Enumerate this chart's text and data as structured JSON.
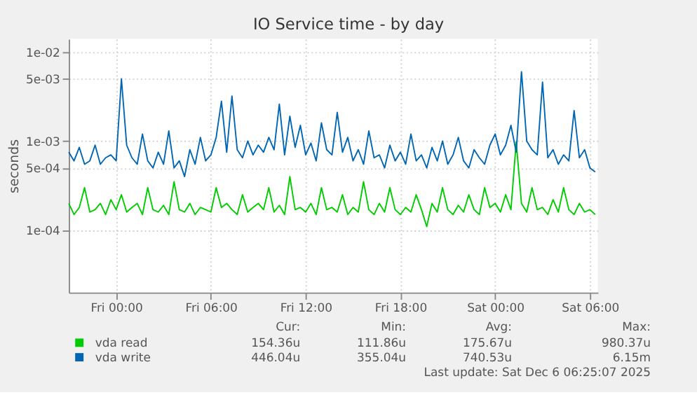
{
  "chart_data": {
    "type": "line",
    "title": "IO Service time - by day",
    "ylabel": "seconds",
    "x": [
      "2025-12-04T21:00",
      "2025-12-04T21:20",
      "2025-12-04T21:40",
      "2025-12-04T22:00",
      "2025-12-04T22:20",
      "2025-12-04T22:40",
      "2025-12-04T23:00",
      "2025-12-04T23:20",
      "2025-12-04T23:40",
      "2025-12-05T00:00",
      "2025-12-05T00:20",
      "2025-12-05T00:40",
      "2025-12-05T01:00",
      "2025-12-05T01:20",
      "2025-12-05T01:40",
      "2025-12-05T02:00",
      "2025-12-05T02:20",
      "2025-12-05T02:40",
      "2025-12-05T03:00",
      "2025-12-05T03:20",
      "2025-12-05T03:40",
      "2025-12-05T04:00",
      "2025-12-05T04:20",
      "2025-12-05T04:40",
      "2025-12-05T05:00",
      "2025-12-05T05:20",
      "2025-12-05T05:40",
      "2025-12-05T06:00",
      "2025-12-05T06:20",
      "2025-12-05T06:40",
      "2025-12-05T07:00",
      "2025-12-05T07:20",
      "2025-12-05T07:40",
      "2025-12-05T08:00",
      "2025-12-05T08:20",
      "2025-12-05T08:40",
      "2025-12-05T09:00",
      "2025-12-05T09:20",
      "2025-12-05T09:40",
      "2025-12-05T10:00",
      "2025-12-05T10:20",
      "2025-12-05T10:40",
      "2025-12-05T11:00",
      "2025-12-05T11:20",
      "2025-12-05T11:40",
      "2025-12-05T12:00",
      "2025-12-05T12:20",
      "2025-12-05T12:40",
      "2025-12-05T13:00",
      "2025-12-05T13:20",
      "2025-12-05T13:40",
      "2025-12-05T14:00",
      "2025-12-05T14:20",
      "2025-12-05T14:40",
      "2025-12-05T15:00",
      "2025-12-05T15:20",
      "2025-12-05T15:40",
      "2025-12-05T16:00",
      "2025-12-05T16:20",
      "2025-12-05T16:40",
      "2025-12-05T17:00",
      "2025-12-05T17:20",
      "2025-12-05T17:40",
      "2025-12-05T18:00",
      "2025-12-05T18:20",
      "2025-12-05T18:40",
      "2025-12-05T19:00",
      "2025-12-05T19:20",
      "2025-12-05T19:40",
      "2025-12-05T20:00",
      "2025-12-05T20:20",
      "2025-12-05T20:40",
      "2025-12-05T21:00",
      "2025-12-05T21:20",
      "2025-12-05T21:40",
      "2025-12-05T22:00",
      "2025-12-05T22:20",
      "2025-12-05T22:40",
      "2025-12-05T23:00",
      "2025-12-05T23:20",
      "2025-12-05T23:40",
      "2025-12-06T00:00",
      "2025-12-06T00:20",
      "2025-12-06T00:40",
      "2025-12-06T01:00",
      "2025-12-06T01:20",
      "2025-12-06T01:40",
      "2025-12-06T02:00",
      "2025-12-06T02:20",
      "2025-12-06T02:40",
      "2025-12-06T03:00",
      "2025-12-06T03:20",
      "2025-12-06T03:40",
      "2025-12-06T04:00",
      "2025-12-06T04:20",
      "2025-12-06T04:40",
      "2025-12-06T05:00",
      "2025-12-06T05:20",
      "2025-12-06T05:40",
      "2025-12-06T06:00",
      "2025-12-06T06:20"
    ],
    "series": [
      {
        "name": "vda read",
        "color": "#00cc00",
        "values": [
          0.0002,
          0.00015,
          0.00018,
          0.0003,
          0.00016,
          0.00017,
          0.0002,
          0.00015,
          0.00022,
          0.00017,
          0.00025,
          0.00016,
          0.00018,
          0.0002,
          0.00015,
          0.0003,
          0.00017,
          0.00016,
          0.00019,
          0.00015,
          0.00035,
          0.00017,
          0.00016,
          0.0002,
          0.00015,
          0.00018,
          0.00017,
          0.00016,
          0.0003,
          0.00018,
          0.0002,
          0.00017,
          0.00015,
          0.00025,
          0.00016,
          0.00018,
          0.0002,
          0.00017,
          0.0003,
          0.00016,
          0.00019,
          0.00015,
          0.0004,
          0.00017,
          0.00018,
          0.00016,
          0.0002,
          0.00015,
          0.0003,
          0.00017,
          0.00018,
          0.00016,
          0.00025,
          0.00015,
          0.00018,
          0.00016,
          0.00035,
          0.00017,
          0.00015,
          0.0002,
          0.00016,
          0.0003,
          0.00017,
          0.00015,
          0.00018,
          0.00016,
          0.00025,
          0.00017,
          0.00011,
          0.0002,
          0.00016,
          0.0003,
          0.00017,
          0.00015,
          0.00019,
          0.00016,
          0.00025,
          0.00017,
          0.00015,
          0.0003,
          0.00018,
          0.0002,
          0.00016,
          0.00025,
          0.00017,
          0.00098,
          0.0002,
          0.00016,
          0.0003,
          0.00017,
          0.00018,
          0.00015,
          0.00022,
          0.00016,
          0.0003,
          0.00017,
          0.00015,
          0.0002,
          0.00016,
          0.00017,
          0.00015
        ]
      },
      {
        "name": "vda write",
        "color": "#0066b3",
        "values": [
          0.00075,
          0.0006,
          0.00085,
          0.00055,
          0.0006,
          0.0009,
          0.00055,
          0.00065,
          0.0007,
          0.0006,
          0.005,
          0.0009,
          0.00065,
          0.00055,
          0.0012,
          0.0006,
          0.0005,
          0.00075,
          0.00055,
          0.0013,
          0.0005,
          0.0006,
          0.0004,
          0.0008,
          0.00055,
          0.0011,
          0.0006,
          0.0007,
          0.0011,
          0.0028,
          0.00075,
          0.0032,
          0.0008,
          0.00065,
          0.001,
          0.0007,
          0.0009,
          0.00075,
          0.0011,
          0.0008,
          0.0026,
          0.0007,
          0.0019,
          0.00085,
          0.0015,
          0.0007,
          0.00095,
          0.0006,
          0.0016,
          0.0008,
          0.0007,
          0.0021,
          0.00075,
          0.0011,
          0.0006,
          0.0008,
          0.00055,
          0.0013,
          0.00065,
          0.0007,
          0.0005,
          0.0009,
          0.0006,
          0.00075,
          0.00055,
          0.0012,
          0.0006,
          0.0007,
          0.0005,
          0.00085,
          0.0006,
          0.001,
          0.00055,
          0.0007,
          0.0011,
          0.0006,
          0.0005,
          0.0008,
          0.00065,
          0.00055,
          0.0009,
          0.0012,
          0.0007,
          0.0009,
          0.0015,
          0.00075,
          0.006,
          0.001,
          0.0008,
          0.0007,
          0.0046,
          0.00065,
          0.0008,
          0.00055,
          0.0007,
          0.0006,
          0.0022,
          0.00065,
          0.0008,
          0.0005,
          0.00045
        ]
      }
    ],
    "xlim": [
      "2025-12-04T21:00",
      "2025-12-06T06:30"
    ],
    "xticks": [
      {
        "value": "2025-12-05T00:00",
        "label": "Fri 00:00"
      },
      {
        "value": "2025-12-05T06:00",
        "label": "Fri 06:00"
      },
      {
        "value": "2025-12-05T12:00",
        "label": "Fri 12:00"
      },
      {
        "value": "2025-12-05T18:00",
        "label": "Fri 18:00"
      },
      {
        "value": "2025-12-06T00:00",
        "label": "Sat 00:00"
      },
      {
        "value": "2025-12-06T06:00",
        "label": "Sat 06:00"
      }
    ],
    "ylim": [
      2e-05,
      0.014
    ],
    "yticks": [
      {
        "value": 0.0001,
        "label": "1e-04"
      },
      {
        "value": 0.0005,
        "label": "5e-04"
      },
      {
        "value": 0.001,
        "label": "1e-03"
      },
      {
        "value": 0.005,
        "label": "5e-03"
      },
      {
        "value": 0.01,
        "label": "1e-02"
      }
    ],
    "log": true,
    "grid": true,
    "legend": "bottom",
    "marker": "none",
    "line_style": "solid",
    "annotations": [
      "Cur:",
      "Min:",
      "Avg:",
      "Max:",
      "154.36u",
      "111.86u",
      "175.67u",
      "980.37u",
      "446.04u",
      "355.04u",
      "740.53u",
      "6.15m",
      "Last update: Sat Dec  6 06:25:07 2025"
    ]
  }
}
